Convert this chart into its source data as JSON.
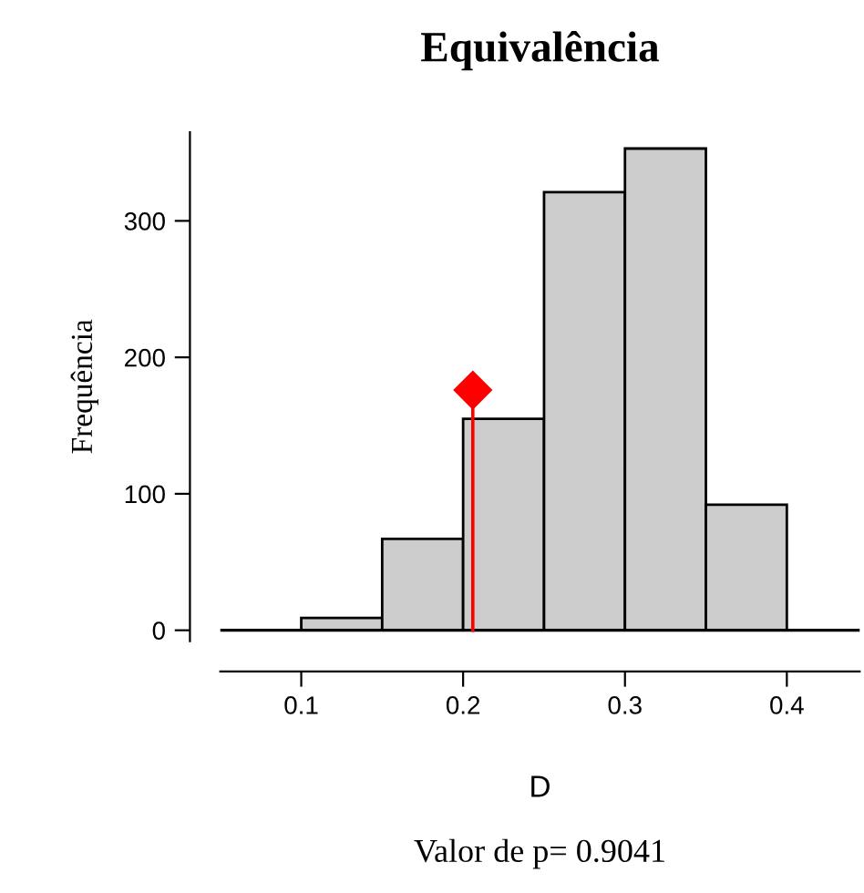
{
  "chart_data": {
    "type": "histogram",
    "title": "Equivalência",
    "xlabel": "D",
    "ylabel": "Frequência",
    "annotations": [
      "Valor de p= 0.9041"
    ],
    "bins": [
      0.1,
      0.15,
      0.2,
      0.25,
      0.3,
      0.35,
      0.4
    ],
    "values": [
      9,
      67,
      155,
      321,
      353,
      92
    ],
    "color": "#cccccc",
    "series": [
      {
        "type": "lollipop",
        "x": [
          0.206
        ],
        "values": [
          176
        ],
        "color": "#ff0000",
        "marker": "diamond"
      }
    ],
    "ref_lines": [
      {
        "axis": "y",
        "value": 0,
        "color": "#000000"
      }
    ],
    "xlim": [
      0.05,
      0.445
    ],
    "ylim": [
      -8,
      365
    ],
    "xticks": [
      0.1,
      0.2,
      0.3,
      0.4
    ],
    "yticks": [
      0,
      100,
      200,
      300
    ],
    "grid": false,
    "legend": false
  }
}
